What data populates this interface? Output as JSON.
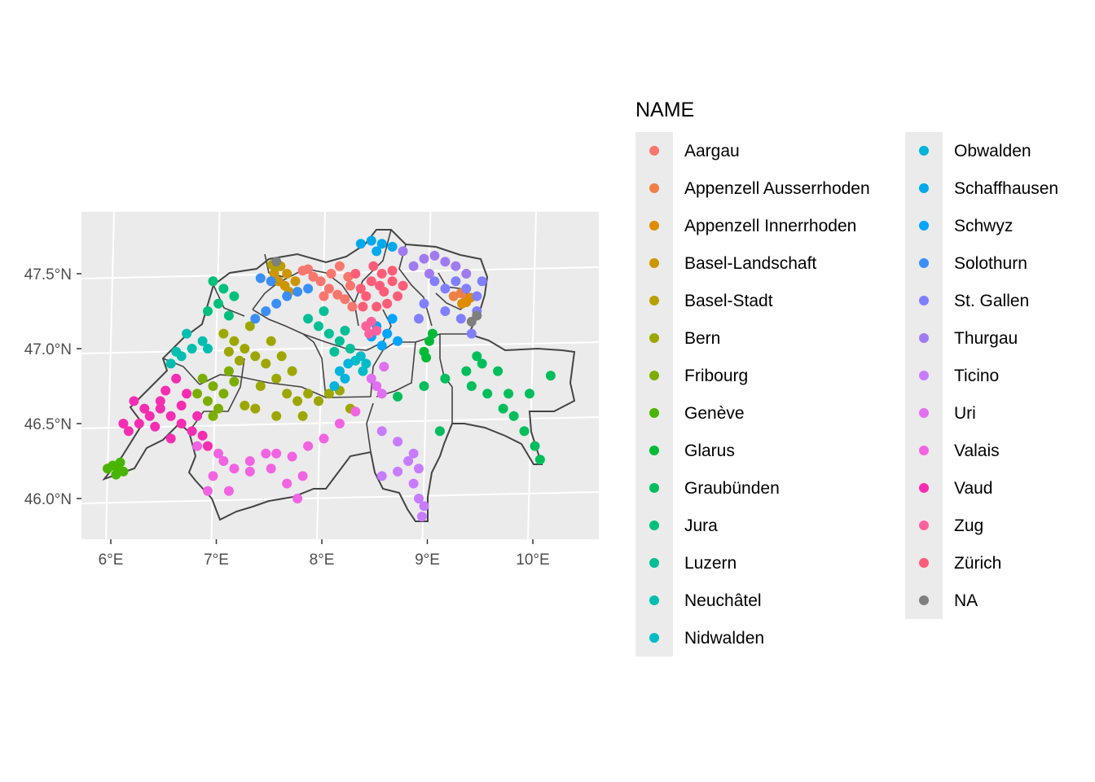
{
  "chart_data": {
    "type": "scatter",
    "x_ticks": [
      "6°E",
      "7°E",
      "8°E",
      "9°E",
      "10°E"
    ],
    "y_ticks": [
      "46.0°N",
      "46.5°N",
      "47.0°N",
      "47.5°N"
    ],
    "xlim": [
      5.75,
      10.65
    ],
    "ylim": [
      45.73,
      47.91
    ],
    "grid": true,
    "legend": {
      "title": "NAME",
      "position": "right",
      "entries": [
        {
          "name": "Aargau",
          "color": "#F8766D"
        },
        {
          "name": "Appenzell Ausserrhoden",
          "color": "#EE7F45"
        },
        {
          "name": "Appenzell Innerrhoden",
          "color": "#DE8C00"
        },
        {
          "name": "Basel-Landschaft",
          "color": "#CD9600"
        },
        {
          "name": "Basel-Stadt",
          "color": "#B79F00"
        },
        {
          "name": "Bern",
          "color": "#9DA700"
        },
        {
          "name": "Fribourg",
          "color": "#7CAE00"
        },
        {
          "name": "Genève",
          "color": "#49B500"
        },
        {
          "name": "Glarus",
          "color": "#00BA38"
        },
        {
          "name": "Graubünden",
          "color": "#00BE5C"
        },
        {
          "name": "Jura",
          "color": "#00C07B"
        },
        {
          "name": "Luzern",
          "color": "#00C097"
        },
        {
          "name": "Neuchâtel",
          "color": "#00BFB0"
        },
        {
          "name": "Nidwalden",
          "color": "#00BCC7"
        },
        {
          "name": "Obwalden",
          "color": "#00B4DB"
        },
        {
          "name": "Schaffhausen",
          "color": "#00A9EC"
        },
        {
          "name": "Schwyz",
          "color": "#00A5FF"
        },
        {
          "name": "Solothurn",
          "color": "#3B8EF5"
        },
        {
          "name": "St. Gallen",
          "color": "#7F7FFF"
        },
        {
          "name": "Thurgau",
          "color": "#A07BF0"
        },
        {
          "name": "Ticino",
          "color": "#C77CFF"
        },
        {
          "name": "Uri",
          "color": "#E16FF1"
        },
        {
          "name": "Valais",
          "color": "#F263E2"
        },
        {
          "name": "Vaud",
          "color": "#F52DB1"
        },
        {
          "name": "Zug",
          "color": "#FF619C"
        },
        {
          "name": "Zürich",
          "color": "#FF5C78"
        },
        {
          "name": "NA",
          "color": "#7F7F7F"
        }
      ]
    },
    "series": [
      {
        "name": "Aargau",
        "points": [
          [
            7.85,
            47.52
          ],
          [
            7.95,
            47.48
          ],
          [
            8.02,
            47.45
          ],
          [
            8.1,
            47.4
          ],
          [
            8.18,
            47.36
          ],
          [
            8.25,
            47.33
          ],
          [
            8.3,
            47.42
          ],
          [
            8.2,
            47.55
          ],
          [
            8.12,
            47.5
          ],
          [
            8.05,
            47.35
          ],
          [
            7.9,
            47.53
          ],
          [
            8.32,
            47.28
          ],
          [
            8.28,
            47.48
          ]
        ]
      },
      {
        "name": "Appenzell Ausserrhoden",
        "points": [
          [
            9.28,
            47.35
          ],
          [
            9.35,
            47.37
          ],
          [
            9.4,
            47.33
          ]
        ]
      },
      {
        "name": "Appenzell Innerrhoden",
        "points": [
          [
            9.4,
            47.31
          ],
          [
            9.36,
            47.3
          ],
          [
            9.44,
            47.34
          ]
        ]
      },
      {
        "name": "Basel-Landschaft",
        "points": [
          [
            7.58,
            47.5
          ],
          [
            7.62,
            47.45
          ],
          [
            7.68,
            47.42
          ],
          [
            7.72,
            47.38
          ],
          [
            7.78,
            47.45
          ],
          [
            7.64,
            47.55
          ],
          [
            7.7,
            47.5
          ]
        ]
      },
      {
        "name": "Basel-Stadt",
        "points": [
          [
            7.58,
            47.55
          ],
          [
            7.6,
            47.57
          ],
          [
            7.56,
            47.56
          ],
          [
            7.63,
            47.55
          ]
        ]
      },
      {
        "name": "Bern",
        "points": [
          [
            7.1,
            47.1
          ],
          [
            7.2,
            47.05
          ],
          [
            7.3,
            47.0
          ],
          [
            7.4,
            46.95
          ],
          [
            7.5,
            46.9
          ],
          [
            7.6,
            46.8
          ],
          [
            7.7,
            46.7
          ],
          [
            7.8,
            46.65
          ],
          [
            7.9,
            46.7
          ],
          [
            8.0,
            46.65
          ],
          [
            8.1,
            46.7
          ],
          [
            8.2,
            46.72
          ],
          [
            7.55,
            47.05
          ],
          [
            7.35,
            47.15
          ],
          [
            7.25,
            46.92
          ],
          [
            7.4,
            46.6
          ],
          [
            7.6,
            46.55
          ],
          [
            7.85,
            46.55
          ],
          [
            8.3,
            46.6
          ],
          [
            7.65,
            46.95
          ],
          [
            7.45,
            46.75
          ],
          [
            7.75,
            46.85
          ],
          [
            7.15,
            46.98
          ],
          [
            7.3,
            46.62
          ]
        ]
      },
      {
        "name": "Fribourg",
        "points": [
          [
            6.9,
            46.8
          ],
          [
            7.0,
            46.75
          ],
          [
            7.1,
            46.7
          ],
          [
            7.05,
            46.6
          ],
          [
            6.95,
            46.65
          ],
          [
            7.15,
            46.85
          ],
          [
            6.85,
            46.7
          ],
          [
            7.2,
            46.78
          ],
          [
            7.0,
            46.55
          ]
        ]
      },
      {
        "name": "Genève",
        "points": [
          [
            6.0,
            46.2
          ],
          [
            6.05,
            46.22
          ],
          [
            6.1,
            46.2
          ],
          [
            6.15,
            46.18
          ],
          [
            6.08,
            46.16
          ],
          [
            6.12,
            46.24
          ]
        ]
      },
      {
        "name": "Glarus",
        "points": [
          [
            9.05,
            47.05
          ],
          [
            9.0,
            46.98
          ],
          [
            9.08,
            47.1
          ],
          [
            9.02,
            46.94
          ]
        ]
      },
      {
        "name": "Graubünden",
        "points": [
          [
            8.75,
            46.68
          ],
          [
            9.0,
            46.75
          ],
          [
            9.2,
            46.8
          ],
          [
            9.4,
            46.85
          ],
          [
            9.55,
            46.9
          ],
          [
            9.7,
            46.85
          ],
          [
            9.8,
            46.7
          ],
          [
            9.85,
            46.55
          ],
          [
            9.95,
            46.45
          ],
          [
            10.05,
            46.35
          ],
          [
            10.1,
            46.26
          ],
          [
            10.0,
            46.7
          ],
          [
            10.2,
            46.82
          ],
          [
            9.6,
            46.7
          ],
          [
            9.45,
            46.75
          ],
          [
            9.15,
            46.45
          ],
          [
            9.5,
            46.95
          ],
          [
            9.75,
            46.6
          ]
        ]
      },
      {
        "name": "Jura",
        "points": [
          [
            7.0,
            47.45
          ],
          [
            7.1,
            47.4
          ],
          [
            7.2,
            47.35
          ],
          [
            7.05,
            47.3
          ],
          [
            6.95,
            47.25
          ],
          [
            7.15,
            47.22
          ]
        ]
      },
      {
        "name": "Luzern",
        "points": [
          [
            8.0,
            47.15
          ],
          [
            8.1,
            47.1
          ],
          [
            8.2,
            47.05
          ],
          [
            8.3,
            47.0
          ],
          [
            8.05,
            47.25
          ],
          [
            7.9,
            47.2
          ],
          [
            8.25,
            47.12
          ],
          [
            8.15,
            46.98
          ]
        ]
      },
      {
        "name": "Neuchâtel",
        "points": [
          [
            6.6,
            46.9
          ],
          [
            6.7,
            46.95
          ],
          [
            6.8,
            47.0
          ],
          [
            6.9,
            47.05
          ],
          [
            6.75,
            47.1
          ],
          [
            6.65,
            46.98
          ],
          [
            6.95,
            47.0
          ]
        ]
      },
      {
        "name": "Nidwalden",
        "points": [
          [
            8.4,
            46.95
          ],
          [
            8.45,
            46.9
          ],
          [
            8.35,
            46.92
          ],
          [
            8.42,
            46.85
          ]
        ]
      },
      {
        "name": "Obwalden",
        "points": [
          [
            8.2,
            46.85
          ],
          [
            8.25,
            46.8
          ],
          [
            8.15,
            46.75
          ],
          [
            8.28,
            46.9
          ]
        ]
      },
      {
        "name": "Schaffhausen",
        "points": [
          [
            8.4,
            47.7
          ],
          [
            8.5,
            47.72
          ],
          [
            8.6,
            47.7
          ],
          [
            8.7,
            47.68
          ],
          [
            8.55,
            47.65
          ]
        ]
      },
      {
        "name": "Schwyz",
        "points": [
          [
            8.55,
            47.15
          ],
          [
            8.65,
            47.1
          ],
          [
            8.75,
            47.05
          ],
          [
            8.6,
            47.02
          ],
          [
            8.7,
            47.2
          ],
          [
            8.5,
            47.08
          ]
        ]
      },
      {
        "name": "Solothurn",
        "points": [
          [
            7.4,
            47.2
          ],
          [
            7.5,
            47.25
          ],
          [
            7.6,
            47.3
          ],
          [
            7.7,
            47.35
          ],
          [
            7.8,
            47.38
          ],
          [
            7.9,
            47.4
          ],
          [
            7.55,
            47.45
          ],
          [
            7.45,
            47.47
          ]
        ]
      },
      {
        "name": "St. Gallen",
        "points": [
          [
            9.1,
            47.45
          ],
          [
            9.2,
            47.4
          ],
          [
            9.3,
            47.45
          ],
          [
            9.4,
            47.4
          ],
          [
            9.5,
            47.35
          ],
          [
            9.55,
            47.45
          ],
          [
            9.5,
            47.25
          ],
          [
            9.45,
            47.1
          ],
          [
            9.35,
            47.2
          ],
          [
            9.2,
            47.25
          ],
          [
            9.0,
            47.3
          ],
          [
            8.95,
            47.2
          ]
        ]
      },
      {
        "name": "Thurgau",
        "points": [
          [
            8.9,
            47.55
          ],
          [
            9.0,
            47.6
          ],
          [
            9.1,
            47.62
          ],
          [
            9.2,
            47.58
          ],
          [
            9.3,
            47.55
          ],
          [
            9.4,
            47.5
          ],
          [
            8.8,
            47.65
          ],
          [
            9.05,
            47.5
          ]
        ]
      },
      {
        "name": "Ticino",
        "points": [
          [
            8.6,
            46.45
          ],
          [
            8.75,
            46.38
          ],
          [
            8.9,
            46.3
          ],
          [
            8.95,
            46.2
          ],
          [
            8.9,
            46.1
          ],
          [
            8.95,
            46.0
          ],
          [
            8.98,
            45.88
          ],
          [
            8.75,
            46.18
          ],
          [
            8.6,
            46.15
          ],
          [
            9.0,
            45.95
          ],
          [
            8.85,
            46.25
          ]
        ]
      },
      {
        "name": "Uri",
        "points": [
          [
            8.6,
            46.7
          ],
          [
            8.55,
            46.75
          ],
          [
            8.5,
            46.8
          ],
          [
            8.62,
            46.88
          ]
        ]
      },
      {
        "name": "Valais",
        "points": [
          [
            7.1,
            46.25
          ],
          [
            7.2,
            46.2
          ],
          [
            7.35,
            46.25
          ],
          [
            7.5,
            46.3
          ],
          [
            7.6,
            46.3
          ],
          [
            7.75,
            46.28
          ],
          [
            7.9,
            46.35
          ],
          [
            8.05,
            46.4
          ],
          [
            8.2,
            46.5
          ],
          [
            8.35,
            46.58
          ],
          [
            7.35,
            46.18
          ],
          [
            7.7,
            46.1
          ],
          [
            7.8,
            46.0
          ],
          [
            7.85,
            46.15
          ],
          [
            7.0,
            46.15
          ],
          [
            6.95,
            46.05
          ],
          [
            7.15,
            46.05
          ],
          [
            7.05,
            46.3
          ],
          [
            6.85,
            46.35
          ],
          [
            7.55,
            46.2
          ]
        ]
      },
      {
        "name": "Vaud",
        "points": [
          [
            6.2,
            46.45
          ],
          [
            6.3,
            46.5
          ],
          [
            6.4,
            46.55
          ],
          [
            6.5,
            46.6
          ],
          [
            6.6,
            46.55
          ],
          [
            6.7,
            46.5
          ],
          [
            6.8,
            46.45
          ],
          [
            6.9,
            46.42
          ],
          [
            6.55,
            46.72
          ],
          [
            6.65,
            46.8
          ],
          [
            6.5,
            46.65
          ],
          [
            6.35,
            46.6
          ],
          [
            6.25,
            46.65
          ],
          [
            6.15,
            46.5
          ],
          [
            6.85,
            46.55
          ],
          [
            6.75,
            46.7
          ],
          [
            6.95,
            46.35
          ],
          [
            6.6,
            46.4
          ],
          [
            6.45,
            46.48
          ],
          [
            6.7,
            46.62
          ]
        ]
      },
      {
        "name": "Zug",
        "points": [
          [
            8.45,
            47.15
          ],
          [
            8.5,
            47.18
          ],
          [
            8.55,
            47.12
          ],
          [
            8.48,
            47.1
          ]
        ]
      },
      {
        "name": "Zürich",
        "points": [
          [
            8.4,
            47.4
          ],
          [
            8.5,
            47.45
          ],
          [
            8.6,
            47.5
          ],
          [
            8.7,
            47.45
          ],
          [
            8.75,
            47.35
          ],
          [
            8.65,
            47.3
          ],
          [
            8.55,
            47.28
          ],
          [
            8.45,
            47.35
          ],
          [
            8.35,
            47.5
          ],
          [
            8.8,
            47.42
          ],
          [
            8.62,
            47.38
          ],
          [
            8.52,
            47.55
          ],
          [
            8.7,
            47.52
          ],
          [
            8.42,
            47.28
          ],
          [
            8.58,
            47.42
          ]
        ]
      },
      {
        "name": "NA",
        "points": [
          [
            9.45,
            47.18
          ],
          [
            9.5,
            47.22
          ],
          [
            7.6,
            47.58
          ]
        ]
      }
    ]
  }
}
